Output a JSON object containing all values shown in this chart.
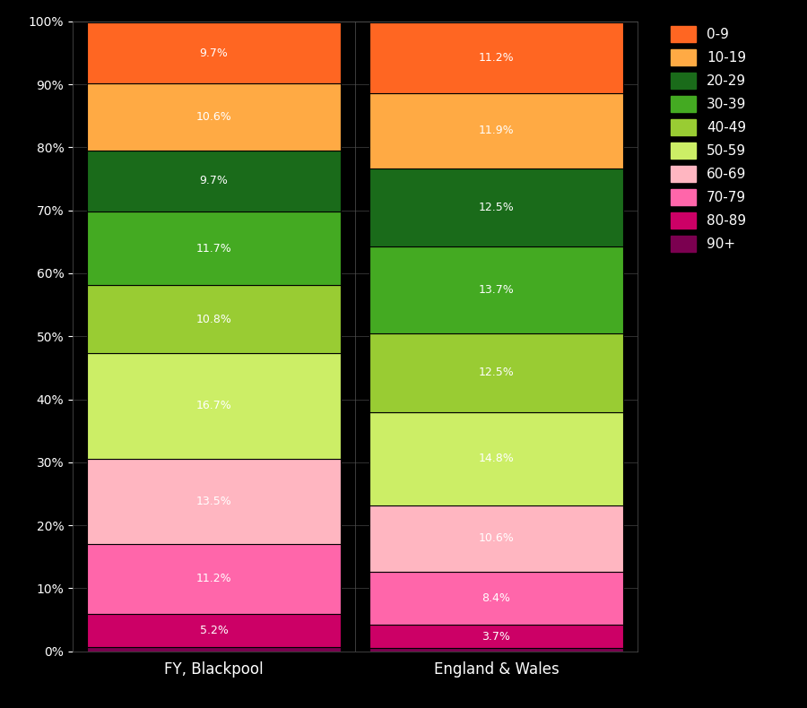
{
  "categories": [
    "FY, Blackpool",
    "England & Wales"
  ],
  "age_groups_bottom_to_top": [
    "90+",
    "80-89",
    "70-79",
    "60-69",
    "50-59",
    "40-49",
    "30-39",
    "20-29",
    "10-19",
    "0-9"
  ],
  "colors_bottom_to_top": [
    "#7B0050",
    "#CC0066",
    "#FF66AA",
    "#FFB6C1",
    "#CCEE66",
    "#99CC33",
    "#44AA22",
    "#1A6B1A",
    "#FFAA44",
    "#FF6622"
  ],
  "blackpool": [
    0.7,
    5.2,
    11.2,
    13.5,
    16.7,
    10.8,
    11.7,
    9.7,
    10.6,
    9.7
  ],
  "england_wales": [
    0.5,
    3.7,
    8.4,
    10.6,
    14.8,
    12.5,
    13.7,
    12.5,
    11.9,
    11.2
  ],
  "background_color": "#000000",
  "text_color": "#ffffff",
  "label_color": "#ffffff",
  "yticks": [
    0,
    10,
    20,
    30,
    40,
    50,
    60,
    70,
    80,
    90,
    100
  ],
  "legend_labels": [
    "0-9",
    "10-19",
    "20-29",
    "30-39",
    "40-49",
    "50-59",
    "60-69",
    "70-79",
    "80-89",
    "90+"
  ]
}
